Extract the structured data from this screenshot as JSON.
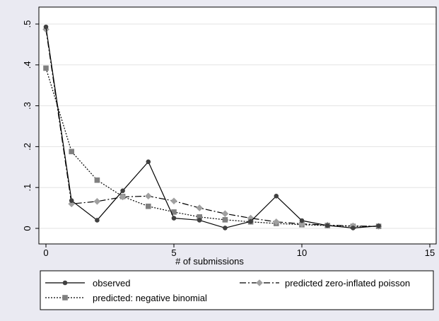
{
  "chart_data": {
    "type": "line",
    "title": "",
    "xlabel": "# of submissions",
    "ylabel": "",
    "xlim": [
      0,
      15
    ],
    "ylim": [
      0,
      0.5
    ],
    "xticks": [
      0,
      5,
      10,
      15
    ],
    "xtick_labels": [
      "0",
      "5",
      "10",
      "15"
    ],
    "yticks": [
      0,
      0.1,
      0.2,
      0.3,
      0.4,
      0.5
    ],
    "ytick_labels": [
      "0",
      ".1",
      ".2",
      ".3",
      ".4",
      ".5"
    ],
    "grid": "horizontal",
    "legend_position": "bottom",
    "series": [
      {
        "name": "observed",
        "color": "#404040",
        "line_style": "solid",
        "marker": "circle",
        "x": [
          0,
          1,
          2,
          3,
          4,
          5,
          6,
          7,
          8,
          9,
          10,
          11,
          12,
          13
        ],
        "values": [
          0.493,
          0.068,
          0.02,
          0.092,
          0.163,
          0.025,
          0.02,
          0.001,
          0.017,
          0.079,
          0.019,
          0.007,
          0.001,
          0.006
        ]
      },
      {
        "name": "predicted zero-inflated poisson",
        "color": "#a0a0a0",
        "line_style": "longdash",
        "marker": "diamond",
        "x": [
          0,
          1,
          2,
          3,
          4,
          5,
          6,
          7,
          8,
          9,
          10,
          11,
          12,
          13
        ],
        "values": [
          0.487,
          0.06,
          0.066,
          0.077,
          0.079,
          0.067,
          0.05,
          0.036,
          0.025,
          0.016,
          0.011,
          0.008,
          0.006,
          0.005
        ]
      },
      {
        "name": "predicted: negative binomial",
        "color": "#808080",
        "line_style": "dotted",
        "marker": "square",
        "x": [
          0,
          1,
          2,
          3,
          4,
          5,
          6,
          7,
          8,
          9,
          10,
          11,
          12,
          13
        ],
        "values": [
          0.392,
          0.188,
          0.118,
          0.078,
          0.054,
          0.04,
          0.028,
          0.021,
          0.016,
          0.012,
          0.009,
          0.007,
          0.005,
          0.005
        ]
      }
    ]
  },
  "colors": {
    "outer_background": "#eaeaf2",
    "plot_background": "#ffffff",
    "grid": "#e3e3e3",
    "frame": "#000000"
  }
}
